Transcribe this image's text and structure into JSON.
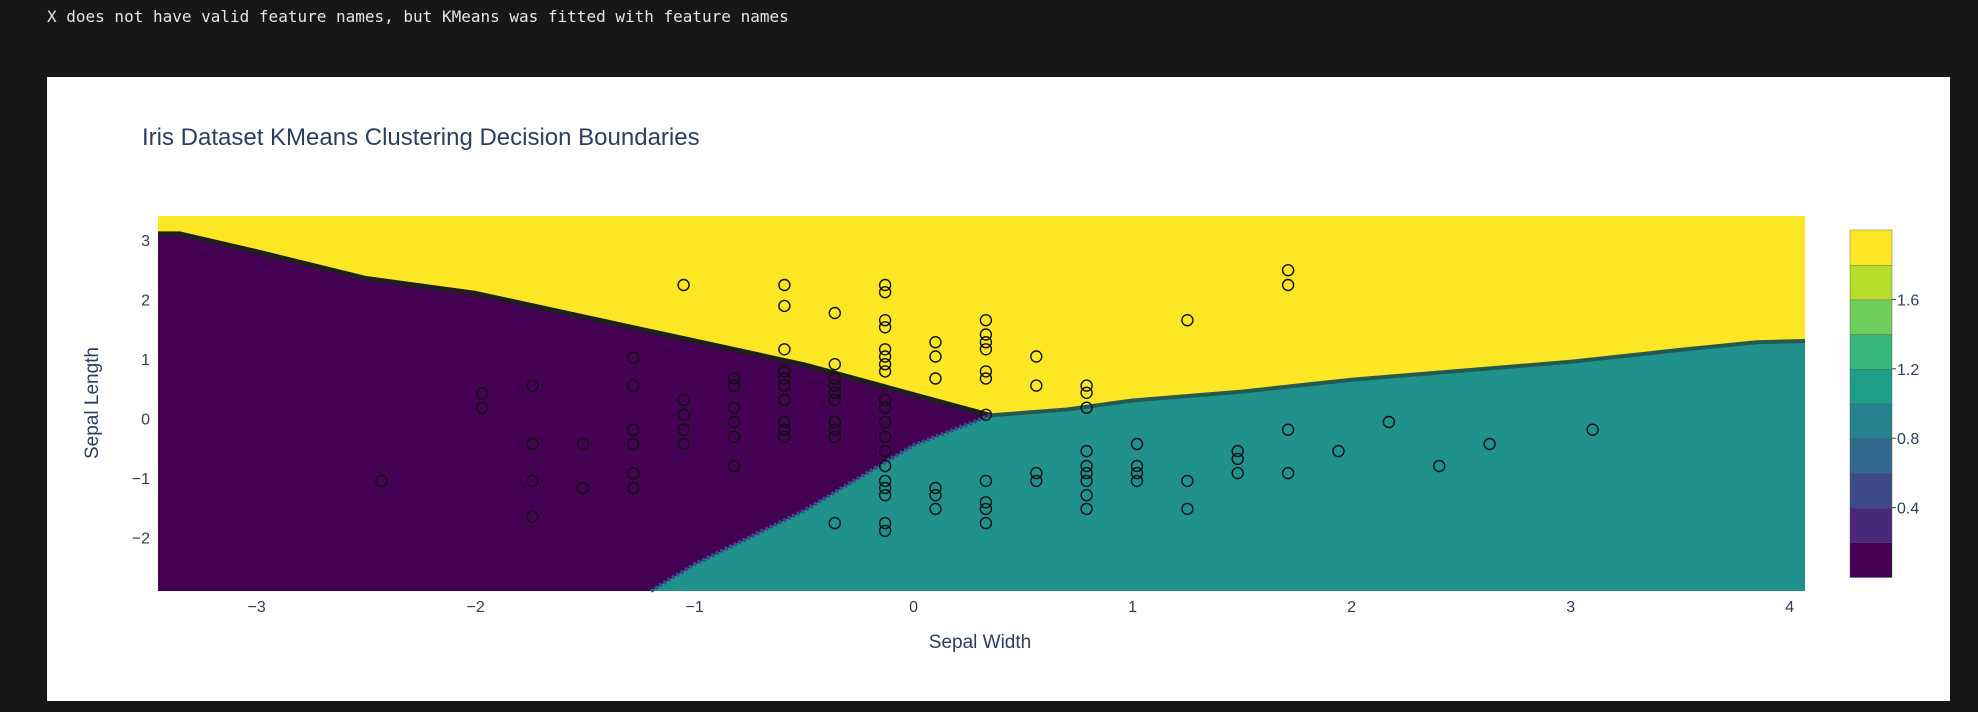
{
  "output": {
    "warning_text": "X does not have valid feature names, but KMeans was fitted with feature names"
  },
  "chart_data": {
    "type": "scatter",
    "subtype": "contour-decision-boundaries",
    "title": "Iris Dataset KMeans Clustering Decision Boundaries",
    "xlabel": "Sepal Width",
    "ylabel": "Sepal Length",
    "xlim": [
      -3.45,
      4.07
    ],
    "ylim": [
      -2.9,
      3.4
    ],
    "xticks": [
      -3,
      -2,
      -1,
      0,
      1,
      2,
      3,
      4
    ],
    "xtick_labels": [
      "−3",
      "−2",
      "−1",
      "0",
      "1",
      "2",
      "3",
      "4"
    ],
    "yticks": [
      3,
      2,
      1,
      0,
      -1,
      -2
    ],
    "ytick_labels": [
      "3",
      "2",
      "1",
      "0",
      "−1",
      "−2"
    ],
    "grid": false,
    "colorscale": "viridis",
    "colorbar": {
      "range": [
        0,
        2
      ],
      "ticks": [
        1.6,
        1.2,
        0.8,
        0.4
      ],
      "tick_labels": [
        "1.6",
        "1.2",
        "0.8",
        "0.4"
      ]
    },
    "regions": [
      {
        "cluster": 0,
        "color": "#440154",
        "description": "left region below the upper boundary"
      },
      {
        "cluster": 1,
        "color": "#21918c",
        "description": "lower-right region"
      },
      {
        "cluster": 2,
        "color": "#fde725",
        "description": "top region"
      }
    ],
    "boundaries": {
      "upper_left": [
        [
          -3.45,
          3.1
        ],
        [
          -3.35,
          3.1
        ],
        [
          -3.0,
          2.8
        ],
        [
          -2.5,
          2.35
        ],
        [
          -2.0,
          2.1
        ],
        [
          -1.5,
          1.7
        ],
        [
          -1.0,
          1.3
        ],
        [
          -0.5,
          0.9
        ],
        [
          0.0,
          0.4
        ],
        [
          0.35,
          0.05
        ]
      ],
      "upper_right": [
        [
          0.35,
          0.05
        ],
        [
          0.7,
          0.15
        ],
        [
          1.0,
          0.3
        ],
        [
          1.5,
          0.45
        ],
        [
          2.0,
          0.65
        ],
        [
          2.5,
          0.8
        ],
        [
          3.0,
          0.95
        ],
        [
          3.5,
          1.15
        ],
        [
          3.85,
          1.28
        ],
        [
          4.07,
          1.3
        ]
      ],
      "lower": [
        [
          0.35,
          0.05
        ],
        [
          0.0,
          -0.45
        ],
        [
          -0.5,
          -1.55
        ],
        [
          -1.0,
          -2.45
        ],
        [
          -1.2,
          -2.9
        ]
      ]
    },
    "points": [
      {
        "x": -2.43,
        "y": -1.05
      },
      {
        "x": -1.97,
        "y": 0.42
      },
      {
        "x": -1.97,
        "y": 0.18
      },
      {
        "x": -1.74,
        "y": 0.55
      },
      {
        "x": -1.74,
        "y": -0.43
      },
      {
        "x": -1.74,
        "y": -1.05
      },
      {
        "x": -1.74,
        "y": -1.65
      },
      {
        "x": -1.51,
        "y": -0.43
      },
      {
        "x": -1.51,
        "y": -1.17
      },
      {
        "x": -1.28,
        "y": 1.02
      },
      {
        "x": -1.28,
        "y": 0.55
      },
      {
        "x": -1.28,
        "y": -0.19
      },
      {
        "x": -1.28,
        "y": -0.43
      },
      {
        "x": -1.28,
        "y": -0.92
      },
      {
        "x": -1.28,
        "y": -1.17
      },
      {
        "x": -1.05,
        "y": 2.24
      },
      {
        "x": -1.05,
        "y": 0.31
      },
      {
        "x": -1.05,
        "y": 0.06
      },
      {
        "x": -1.05,
        "y": -0.19
      },
      {
        "x": -1.05,
        "y": -0.43
      },
      {
        "x": -0.82,
        "y": 0.67
      },
      {
        "x": -0.82,
        "y": 0.55
      },
      {
        "x": -0.82,
        "y": 0.18
      },
      {
        "x": -0.82,
        "y": -0.06
      },
      {
        "x": -0.82,
        "y": -0.31
      },
      {
        "x": -0.82,
        "y": -0.8
      },
      {
        "x": -0.59,
        "y": 2.24
      },
      {
        "x": -0.59,
        "y": 1.89
      },
      {
        "x": -0.59,
        "y": 1.16
      },
      {
        "x": -0.59,
        "y": 0.79
      },
      {
        "x": -0.59,
        "y": 0.67
      },
      {
        "x": -0.59,
        "y": 0.55
      },
      {
        "x": -0.59,
        "y": 0.31
      },
      {
        "x": -0.59,
        "y": -0.06
      },
      {
        "x": -0.59,
        "y": -0.19
      },
      {
        "x": -0.59,
        "y": -0.31
      },
      {
        "x": -0.36,
        "y": 1.77
      },
      {
        "x": -0.36,
        "y": 0.91
      },
      {
        "x": -0.36,
        "y": 0.67
      },
      {
        "x": -0.36,
        "y": 0.55
      },
      {
        "x": -0.36,
        "y": 0.43
      },
      {
        "x": -0.36,
        "y": 0.31
      },
      {
        "x": -0.36,
        "y": -0.06
      },
      {
        "x": -0.36,
        "y": -0.19
      },
      {
        "x": -0.36,
        "y": -0.31
      },
      {
        "x": -0.36,
        "y": -1.76
      },
      {
        "x": -0.13,
        "y": 2.24
      },
      {
        "x": -0.13,
        "y": 2.12
      },
      {
        "x": -0.13,
        "y": 1.65
      },
      {
        "x": -0.13,
        "y": 1.53
      },
      {
        "x": -0.13,
        "y": 1.16
      },
      {
        "x": -0.13,
        "y": 1.04
      },
      {
        "x": -0.13,
        "y": 0.91
      },
      {
        "x": -0.13,
        "y": 0.79
      },
      {
        "x": -0.13,
        "y": 0.31
      },
      {
        "x": -0.13,
        "y": 0.18
      },
      {
        "x": -0.13,
        "y": -0.06
      },
      {
        "x": -0.13,
        "y": -0.31
      },
      {
        "x": -0.13,
        "y": -0.55
      },
      {
        "x": -0.13,
        "y": -0.8
      },
      {
        "x": -0.13,
        "y": -1.05
      },
      {
        "x": -0.13,
        "y": -1.17
      },
      {
        "x": -0.13,
        "y": -1.29
      },
      {
        "x": -0.13,
        "y": -1.76
      },
      {
        "x": -0.13,
        "y": -1.89
      },
      {
        "x": 0.1,
        "y": 1.28
      },
      {
        "x": 0.1,
        "y": 1.04
      },
      {
        "x": 0.1,
        "y": 0.67
      },
      {
        "x": 0.1,
        "y": -1.17
      },
      {
        "x": 0.1,
        "y": -1.29
      },
      {
        "x": 0.1,
        "y": -1.52
      },
      {
        "x": 0.33,
        "y": 1.65
      },
      {
        "x": 0.33,
        "y": 1.41
      },
      {
        "x": 0.33,
        "y": 1.28
      },
      {
        "x": 0.33,
        "y": 1.16
      },
      {
        "x": 0.33,
        "y": 0.79
      },
      {
        "x": 0.33,
        "y": 0.67
      },
      {
        "x": 0.33,
        "y": 0.06
      },
      {
        "x": 0.33,
        "y": -1.05
      },
      {
        "x": 0.33,
        "y": -1.41
      },
      {
        "x": 0.33,
        "y": -1.52
      },
      {
        "x": 0.33,
        "y": -1.76
      },
      {
        "x": 0.56,
        "y": 1.04
      },
      {
        "x": 0.56,
        "y": 0.55
      },
      {
        "x": 0.56,
        "y": -0.92
      },
      {
        "x": 0.56,
        "y": -1.05
      },
      {
        "x": 0.79,
        "y": 0.55
      },
      {
        "x": 0.79,
        "y": 0.43
      },
      {
        "x": 0.79,
        "y": 0.18
      },
      {
        "x": 0.79,
        "y": -0.55
      },
      {
        "x": 0.79,
        "y": -0.8
      },
      {
        "x": 0.79,
        "y": -0.92
      },
      {
        "x": 0.79,
        "y": -1.05
      },
      {
        "x": 0.79,
        "y": -1.29
      },
      {
        "x": 0.79,
        "y": -1.52
      },
      {
        "x": 1.02,
        "y": -0.43
      },
      {
        "x": 1.02,
        "y": -0.8
      },
      {
        "x": 1.02,
        "y": -0.92
      },
      {
        "x": 1.02,
        "y": -1.05
      },
      {
        "x": 1.25,
        "y": 1.65
      },
      {
        "x": 1.25,
        "y": -1.05
      },
      {
        "x": 1.25,
        "y": -1.52
      },
      {
        "x": 1.48,
        "y": -0.55
      },
      {
        "x": 1.48,
        "y": -0.68
      },
      {
        "x": 1.48,
        "y": -0.92
      },
      {
        "x": 1.71,
        "y": 2.49
      },
      {
        "x": 1.71,
        "y": 2.24
      },
      {
        "x": 1.71,
        "y": -0.19
      },
      {
        "x": 1.71,
        "y": -0.92
      },
      {
        "x": 1.94,
        "y": -0.55
      },
      {
        "x": 2.17,
        "y": -0.06
      },
      {
        "x": 2.4,
        "y": -0.8
      },
      {
        "x": 2.63,
        "y": -0.43
      },
      {
        "x": 3.1,
        "y": -0.19
      }
    ]
  }
}
